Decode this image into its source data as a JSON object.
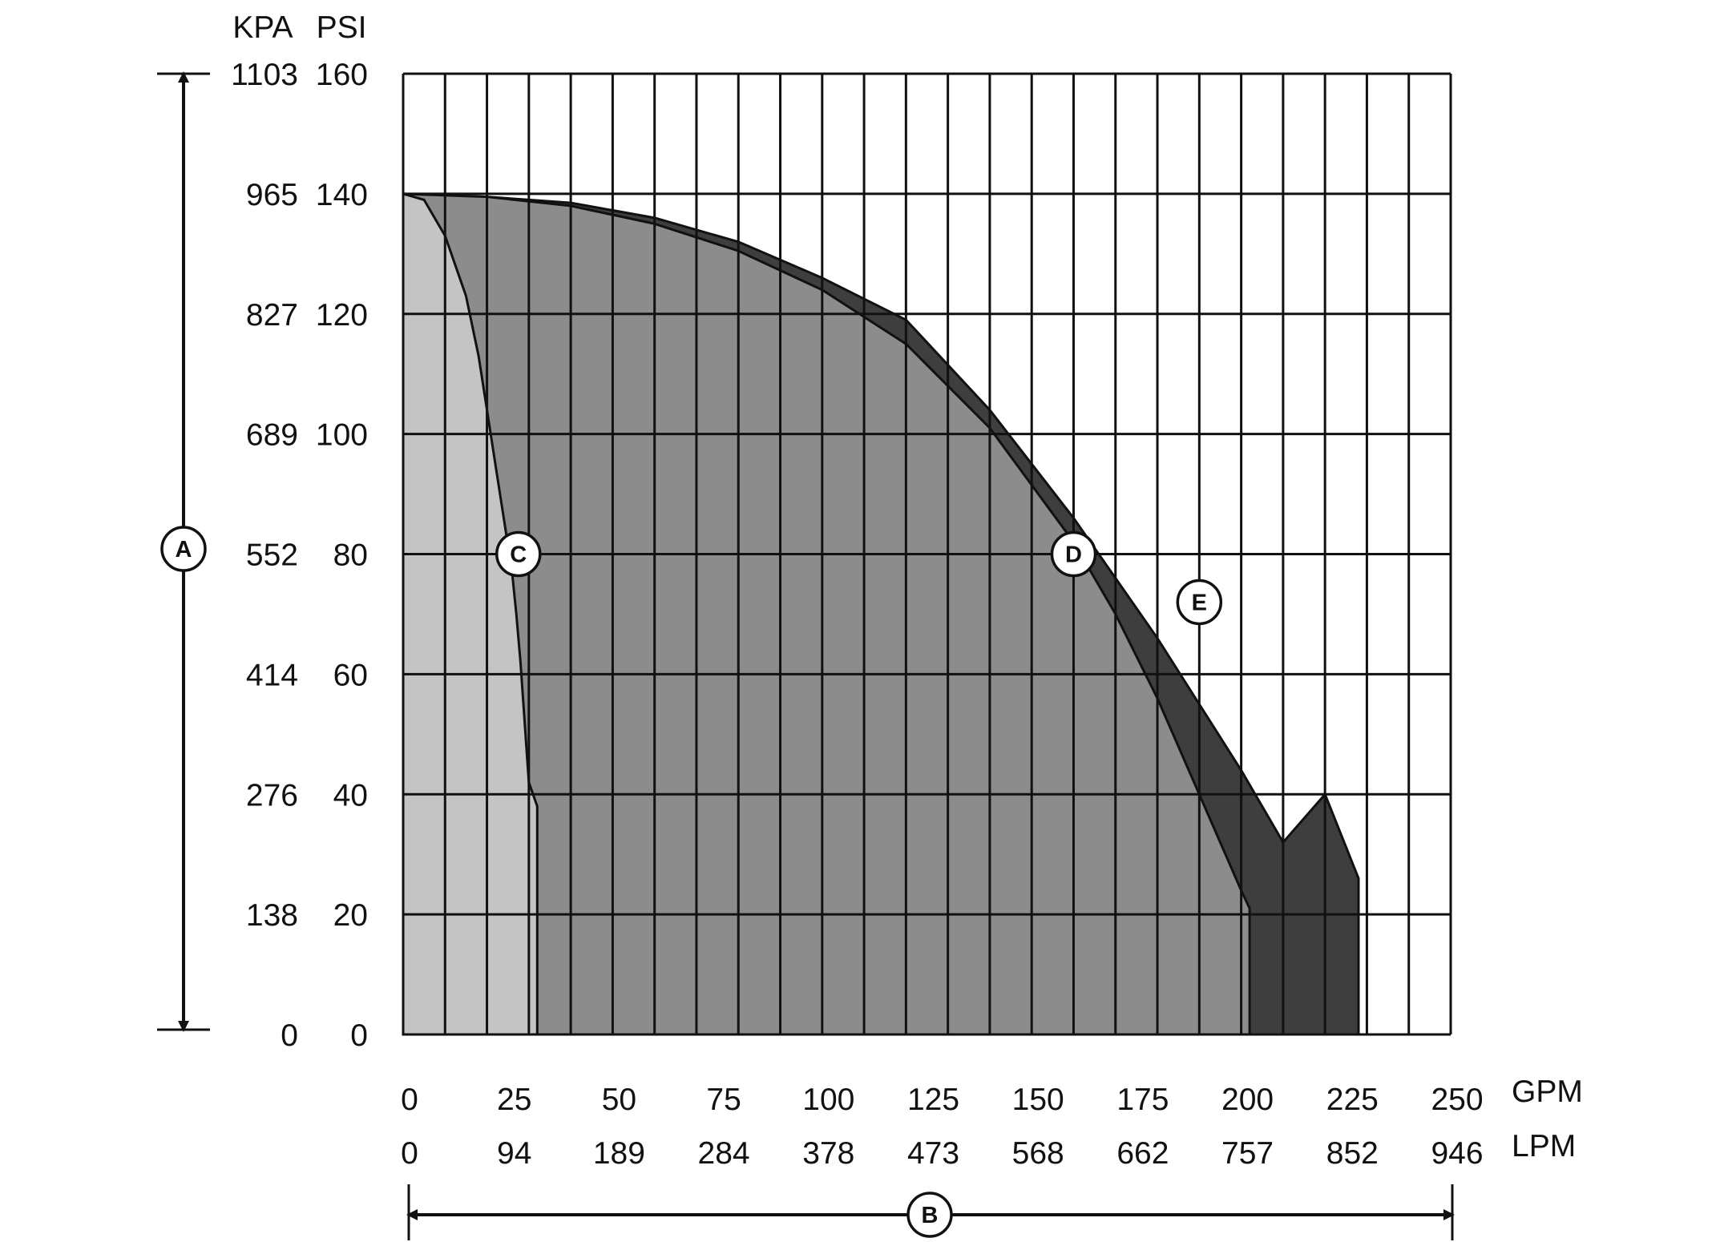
{
  "chart_data": {
    "type": "area",
    "title": "",
    "y_units": {
      "kpa_label": "KPA",
      "psi_label": "PSI"
    },
    "x_units": {
      "gpm_label": "GPM",
      "lpm_label": "LPM"
    },
    "psi_ticks": [
      "0",
      "20",
      "40",
      "60",
      "80",
      "100",
      "120",
      "140",
      "160"
    ],
    "kpa_ticks": [
      "0",
      "138",
      "276",
      "414",
      "552",
      "689",
      "827",
      "965",
      "1103"
    ],
    "gpm_ticks": [
      "0",
      "25",
      "50",
      "75",
      "100",
      "125",
      "150",
      "175",
      "200",
      "225",
      "250"
    ],
    "lpm_ticks": [
      "0",
      "94",
      "189",
      "284",
      "378",
      "473",
      "568",
      "662",
      "757",
      "852",
      "946"
    ],
    "xlim": [
      0,
      250
    ],
    "ylim": [
      0,
      160
    ],
    "vertical_grid_step_gpm": 10,
    "horizontal_grid_step_psi": 20,
    "series": [
      {
        "name": "C",
        "fill": "#c4c4c4",
        "points": [
          [
            0,
            140
          ],
          [
            5,
            139
          ],
          [
            10,
            133
          ],
          [
            15,
            123
          ],
          [
            18,
            113
          ],
          [
            20,
            104
          ],
          [
            22,
            95
          ],
          [
            24,
            86
          ],
          [
            26,
            77
          ],
          [
            27,
            70
          ],
          [
            28,
            62
          ],
          [
            29,
            52
          ],
          [
            30,
            42
          ],
          [
            32,
            38
          ],
          [
            32,
            0
          ]
        ]
      },
      {
        "name": "D",
        "fill": "#8c8c8c",
        "points": [
          [
            0,
            140
          ],
          [
            20,
            139.5
          ],
          [
            40,
            138
          ],
          [
            60,
            135
          ],
          [
            80,
            130.5
          ],
          [
            100,
            124
          ],
          [
            120,
            115
          ],
          [
            140,
            101
          ],
          [
            160,
            82
          ],
          [
            170,
            70
          ],
          [
            180,
            56
          ],
          [
            190,
            40
          ],
          [
            200,
            24
          ],
          [
            202,
            21
          ],
          [
            202,
            0
          ]
        ]
      },
      {
        "name": "E",
        "fill": "#3e3e3e",
        "points": [
          [
            0,
            140
          ],
          [
            20,
            139.5
          ],
          [
            40,
            138.5
          ],
          [
            60,
            136
          ],
          [
            80,
            132
          ],
          [
            100,
            126
          ],
          [
            120,
            119
          ],
          [
            140,
            104
          ],
          [
            160,
            86
          ],
          [
            180,
            66
          ],
          [
            200,
            44
          ],
          [
            210,
            32
          ],
          [
            220,
            40
          ],
          [
            228,
            26
          ],
          [
            228,
            0
          ]
        ]
      }
    ],
    "markers": [
      {
        "label": "A",
        "position": "pressure axis"
      },
      {
        "label": "B",
        "position": "flow axis"
      },
      {
        "label": "C",
        "gpm": 27.5,
        "psi": 80
      },
      {
        "label": "D",
        "gpm": 160,
        "psi": 80
      },
      {
        "label": "E",
        "gpm": 190,
        "psi": 72
      }
    ]
  }
}
